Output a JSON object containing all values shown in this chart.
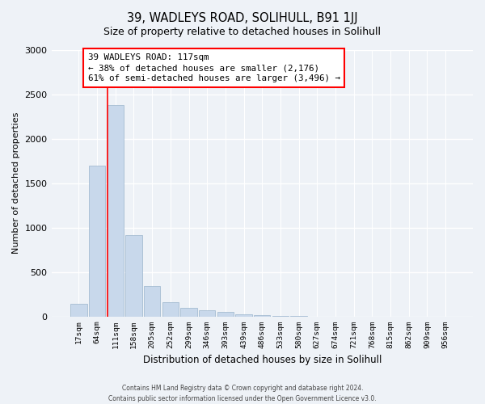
{
  "title": "39, WADLEYS ROAD, SOLIHULL, B91 1JJ",
  "subtitle": "Size of property relative to detached houses in Solihull",
  "xlabel": "Distribution of detached houses by size in Solihull",
  "ylabel": "Number of detached properties",
  "bar_color": "#c8d8eb",
  "bar_edge_color": "#9ab4cc",
  "categories": [
    "17sqm",
    "64sqm",
    "111sqm",
    "158sqm",
    "205sqm",
    "252sqm",
    "299sqm",
    "346sqm",
    "393sqm",
    "439sqm",
    "486sqm",
    "533sqm",
    "580sqm",
    "627sqm",
    "674sqm",
    "721sqm",
    "768sqm",
    "815sqm",
    "862sqm",
    "909sqm",
    "956sqm"
  ],
  "values": [
    140,
    1700,
    2380,
    920,
    340,
    165,
    95,
    75,
    50,
    30,
    20,
    10,
    5,
    0,
    0,
    0,
    0,
    0,
    0,
    0,
    0
  ],
  "ylim": [
    0,
    3000
  ],
  "yticks": [
    0,
    500,
    1000,
    1500,
    2000,
    2500,
    3000
  ],
  "property_label": "39 WADLEYS ROAD: 117sqm",
  "annotation_line1": "← 38% of detached houses are smaller (2,176)",
  "annotation_line2": "61% of semi-detached houses are larger (3,496) →",
  "red_line_bar_index": 2,
  "footer_line1": "Contains HM Land Registry data © Crown copyright and database right 2024.",
  "footer_line2": "Contains public sector information licensed under the Open Government Licence v3.0.",
  "background_color": "#eef2f7",
  "plot_bg_color": "#eef2f7",
  "grid_color": "#ffffff",
  "title_fontsize": 10.5,
  "subtitle_fontsize": 9
}
